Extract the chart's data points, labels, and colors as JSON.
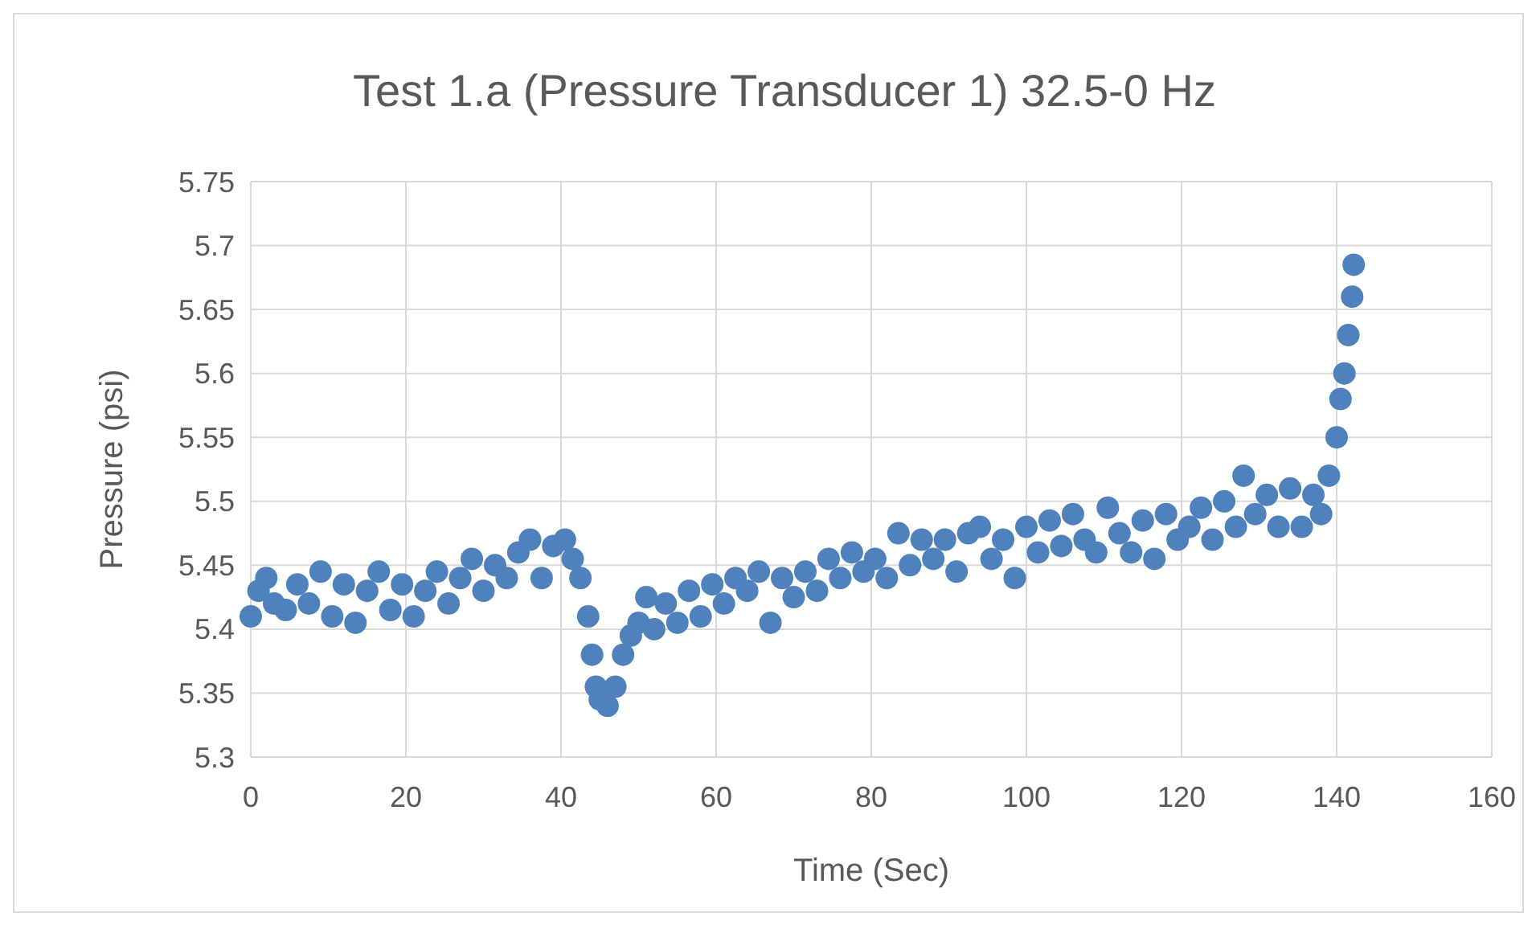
{
  "chart_data": {
    "type": "scatter",
    "title": "Test 1.a (Pressure Transducer 1) 32.5-0 Hz",
    "xlabel": "Time (Sec)",
    "ylabel": "Pressure (psi)",
    "xlim": [
      0,
      160
    ],
    "xticks": [
      0,
      20,
      40,
      60,
      80,
      100,
      120,
      140,
      160
    ],
    "ylim": [
      5.3,
      5.75
    ],
    "yticks": [
      {
        "value": 5.3,
        "label": "5.3"
      },
      {
        "value": 5.35,
        "label": "5.35"
      },
      {
        "value": 5.4,
        "label": "5.4"
      },
      {
        "value": 5.45,
        "label": "5.45"
      },
      {
        "value": 5.5,
        "label": "5.5"
      },
      {
        "value": 5.55,
        "label": "5.55"
      },
      {
        "value": 5.6,
        "label": "5.6"
      },
      {
        "value": 5.65,
        "label": "5.65"
      },
      {
        "value": 5.7,
        "label": "5.7"
      },
      {
        "value": 5.75,
        "label": "5.75"
      }
    ],
    "grid": true,
    "marker": "circle",
    "series": [
      {
        "color": "#4f81bd",
        "x": [
          0,
          1,
          2,
          3,
          4.5,
          6,
          7.5,
          9,
          10.5,
          12,
          13.5,
          15,
          16.5,
          18,
          19.5,
          21,
          22.5,
          24,
          25.5,
          27,
          28.5,
          30,
          31.5,
          33,
          34.5,
          36,
          37.5,
          39,
          40.5,
          41.5,
          42.5,
          43.5,
          44,
          44.5,
          45,
          46,
          47,
          48,
          49,
          50,
          51,
          52,
          53.5,
          55,
          56.5,
          58,
          59.5,
          61,
          62.5,
          64,
          65.5,
          67,
          68.5,
          70,
          71.5,
          73,
          74.5,
          76,
          77.5,
          79,
          80.5,
          82,
          83.5,
          85,
          86.5,
          88,
          89.5,
          91,
          92.5,
          94,
          95.5,
          97,
          98.5,
          100,
          101.5,
          103,
          104.5,
          106,
          107.5,
          109,
          110.5,
          112,
          113.5,
          115,
          116.5,
          118,
          119.5,
          121,
          122.5,
          124,
          125.5,
          127,
          128,
          129.5,
          131,
          132.5,
          134,
          135.5,
          137,
          138,
          139,
          140,
          140.5,
          141,
          141.5,
          142,
          142.2
        ],
        "values": [
          5.41,
          5.43,
          5.44,
          5.42,
          5.415,
          5.435,
          5.42,
          5.445,
          5.41,
          5.435,
          5.405,
          5.43,
          5.445,
          5.415,
          5.435,
          5.41,
          5.43,
          5.445,
          5.42,
          5.44,
          5.455,
          5.43,
          5.45,
          5.44,
          5.46,
          5.47,
          5.44,
          5.465,
          5.47,
          5.455,
          5.44,
          5.41,
          5.38,
          5.355,
          5.345,
          5.34,
          5.355,
          5.38,
          5.395,
          5.405,
          5.425,
          5.4,
          5.42,
          5.405,
          5.43,
          5.41,
          5.435,
          5.42,
          5.44,
          5.43,
          5.445,
          5.405,
          5.44,
          5.425,
          5.445,
          5.43,
          5.455,
          5.44,
          5.46,
          5.445,
          5.455,
          5.44,
          5.475,
          5.45,
          5.47,
          5.455,
          5.47,
          5.445,
          5.475,
          5.48,
          5.455,
          5.47,
          5.44,
          5.48,
          5.46,
          5.485,
          5.465,
          5.49,
          5.47,
          5.46,
          5.495,
          5.475,
          5.46,
          5.485,
          5.455,
          5.49,
          5.47,
          5.48,
          5.495,
          5.47,
          5.5,
          5.48,
          5.52,
          5.49,
          5.505,
          5.48,
          5.51,
          5.48,
          5.505,
          5.49,
          5.52,
          5.55,
          5.58,
          5.6,
          5.63,
          5.66,
          5.685
        ]
      }
    ]
  }
}
